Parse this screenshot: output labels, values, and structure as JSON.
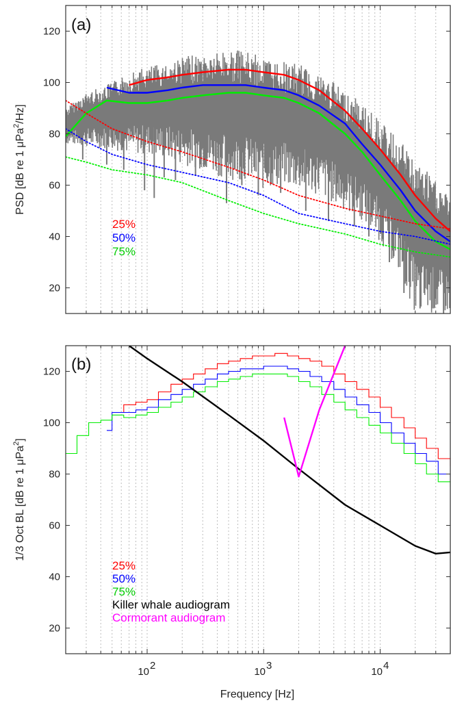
{
  "chart_data": [
    {
      "type": "line",
      "panel_label": "(a)",
      "xlabel": "",
      "ylabel": "PSD [dB re 1 μPa²/Hz]",
      "ylabel_parts": {
        "main": "PSD [dB re 1 μPa",
        "sup": "2",
        "tail": "/Hz]"
      },
      "xscale": "log",
      "xlim": [
        20,
        40000
      ],
      "ylim": [
        10,
        130
      ],
      "yticks": [
        20,
        40,
        60,
        80,
        100,
        120
      ],
      "grid": "vertical-minor-dashed",
      "legend": [
        "25%",
        "50%",
        "75%"
      ],
      "legend_placement": "lower-left",
      "series": [
        {
          "name": "25%",
          "style": "solid",
          "color": "#ff0000",
          "x": [
            70,
            100,
            150,
            200,
            300,
            500,
            700,
            1000,
            1500,
            2000,
            3000,
            5000,
            7000,
            10000,
            15000,
            20000,
            30000,
            40000
          ],
          "y": [
            99,
            101,
            102,
            103,
            104,
            105,
            105,
            104,
            103,
            101,
            97,
            89,
            82,
            74,
            64,
            56,
            47,
            42
          ]
        },
        {
          "name": "50%",
          "style": "solid",
          "color": "#0000ff",
          "x": [
            45,
            70,
            100,
            150,
            200,
            300,
            500,
            700,
            1000,
            1500,
            2000,
            3000,
            5000,
            7000,
            10000,
            15000,
            20000,
            30000,
            40000
          ],
          "y": [
            98,
            96,
            96,
            97,
            98,
            99,
            99,
            99,
            98,
            97,
            95,
            91,
            84,
            76,
            68,
            58,
            50,
            42,
            38
          ]
        },
        {
          "name": "75%",
          "style": "solid",
          "color": "#00ee00",
          "x": [
            20,
            30,
            45,
            70,
            100,
            150,
            200,
            300,
            500,
            700,
            1000,
            1500,
            2000,
            3000,
            5000,
            7000,
            10000,
            15000,
            20000,
            30000,
            40000
          ],
          "y": [
            79,
            88,
            93,
            92,
            92,
            93,
            94,
            95,
            96,
            96,
            95,
            94,
            92,
            88,
            80,
            73,
            64,
            54,
            46,
            38,
            35
          ]
        },
        {
          "name": "25% floor",
          "style": "dotted",
          "color": "#ff0000",
          "x": [
            20,
            30,
            50,
            100,
            200,
            500,
            1000,
            2000,
            5000,
            10000,
            20000,
            40000
          ],
          "y": [
            93,
            88,
            82,
            77,
            73,
            67,
            62,
            56,
            51,
            48,
            45,
            43
          ]
        },
        {
          "name": "50% floor",
          "style": "dotted",
          "color": "#0000ff",
          "x": [
            20,
            30,
            50,
            100,
            200,
            500,
            1000,
            2000,
            5000,
            10000,
            20000,
            40000
          ],
          "y": [
            82,
            77,
            72,
            68,
            65,
            61,
            56,
            49,
            45,
            42,
            40,
            37
          ]
        },
        {
          "name": "75% floor",
          "style": "dotted",
          "color": "#00ee00",
          "x": [
            20,
            30,
            50,
            100,
            200,
            500,
            1000,
            2000,
            5000,
            10000,
            20000,
            40000
          ],
          "y": [
            71,
            69,
            66,
            64,
            61,
            54,
            49,
            45,
            41,
            37,
            34,
            32
          ]
        }
      ],
      "spectrum_envelope": {
        "color": "#7a7a7a",
        "x": [
          20,
          30,
          50,
          70,
          100,
          150,
          200,
          300,
          500,
          700,
          1000,
          1500,
          2000,
          3000,
          5000,
          7000,
          10000,
          15000,
          20000,
          30000,
          40000
        ],
        "upper": [
          90,
          96,
          100,
          104,
          106,
          108,
          110,
          111,
          113,
          112,
          110,
          108,
          107,
          104,
          97,
          92,
          85,
          77,
          70,
          62,
          55
        ],
        "lower": [
          76,
          75,
          74,
          72,
          72,
          70,
          68,
          66,
          62,
          62,
          58,
          60,
          58,
          56,
          50,
          46,
          38,
          25,
          10,
          10,
          10
        ]
      }
    },
    {
      "type": "line",
      "panel_label": "(b)",
      "xlabel": "Frequency [Hz]",
      "ylabel": "1/3 Oct BL [dB re 1 μPa²]",
      "ylabel_parts": {
        "main": "1/3 Oct BL [dB re 1 μPa",
        "sup": "2",
        "tail": "]"
      },
      "xscale": "log",
      "xlim": [
        20,
        40000
      ],
      "ylim": [
        10,
        130
      ],
      "yticks": [
        20,
        40,
        60,
        80,
        100,
        120
      ],
      "xticks": [
        {
          "base": "10",
          "exp": "2"
        },
        {
          "base": "10",
          "exp": "3"
        },
        {
          "base": "10",
          "exp": "4"
        }
      ],
      "grid": "vertical-minor-dashed",
      "legend": [
        "25%",
        "50%",
        "75%",
        "Killer whale audiogram",
        "Cormorant audiogram"
      ],
      "legend_placement": "lower-left",
      "series": [
        {
          "name": "25%",
          "style": "step",
          "color": "#ff0000",
          "x": [
            50,
            63,
            80,
            100,
            125,
            160,
            200,
            250,
            315,
            400,
            500,
            630,
            800,
            1000,
            1250,
            1600,
            2000,
            2500,
            3150,
            4000,
            5000,
            6300,
            8000,
            10000,
            12500,
            16000,
            20000,
            25000,
            31500,
            40000
          ],
          "y": [
            104,
            107,
            108,
            109,
            112,
            115,
            117,
            119,
            121,
            123,
            124,
            125,
            126,
            126,
            127,
            126,
            125,
            124,
            122,
            119,
            116,
            113,
            110,
            106,
            102,
            98,
            94,
            90,
            86,
            83
          ]
        },
        {
          "name": "50%",
          "style": "step",
          "color": "#0000ff",
          "x": [
            45,
            50,
            63,
            80,
            100,
            125,
            160,
            200,
            250,
            315,
            400,
            500,
            630,
            800,
            1000,
            1250,
            1600,
            2000,
            2500,
            3150,
            4000,
            5000,
            6300,
            8000,
            10000,
            12500,
            16000,
            20000,
            25000,
            31500,
            40000
          ],
          "y": [
            97,
            104,
            104,
            105,
            106,
            109,
            111,
            113,
            115,
            117,
            119,
            120,
            121,
            121,
            122,
            122,
            121,
            120,
            118,
            116,
            113,
            110,
            107,
            104,
            100,
            96,
            92,
            88,
            85,
            80,
            79
          ]
        },
        {
          "name": "75%",
          "style": "step",
          "color": "#00ee00",
          "x": [
            20,
            25,
            31.5,
            40,
            50,
            63,
            80,
            100,
            125,
            160,
            200,
            250,
            315,
            400,
            500,
            630,
            800,
            1000,
            1250,
            1600,
            2000,
            2500,
            3150,
            4000,
            5000,
            6300,
            8000,
            10000,
            12500,
            16000,
            20000,
            25000,
            31500,
            40000
          ],
          "y": [
            88,
            95,
            100,
            101,
            103,
            102,
            103,
            104,
            106,
            108,
            110,
            112,
            114,
            116,
            117,
            118,
            119,
            119,
            119,
            118,
            116,
            114,
            111,
            108,
            105,
            102,
            99,
            96,
            92,
            88,
            84,
            80,
            77,
            75
          ]
        },
        {
          "name": "Killer whale audiogram",
          "style": "solid",
          "color": "#000000",
          "x": [
            70,
            100,
            200,
            500,
            1000,
            2000,
            5000,
            10000,
            20000,
            30000,
            40000
          ],
          "y": [
            130,
            125,
            116,
            103,
            93,
            82,
            68,
            60,
            52,
            49,
            49.5
          ]
        },
        {
          "name": "Cormorant audiogram",
          "style": "solid",
          "color": "#ff00ff",
          "x": [
            1500,
            2000,
            3000,
            5000
          ],
          "y": [
            102,
            79,
            105,
            130
          ]
        }
      ]
    }
  ]
}
